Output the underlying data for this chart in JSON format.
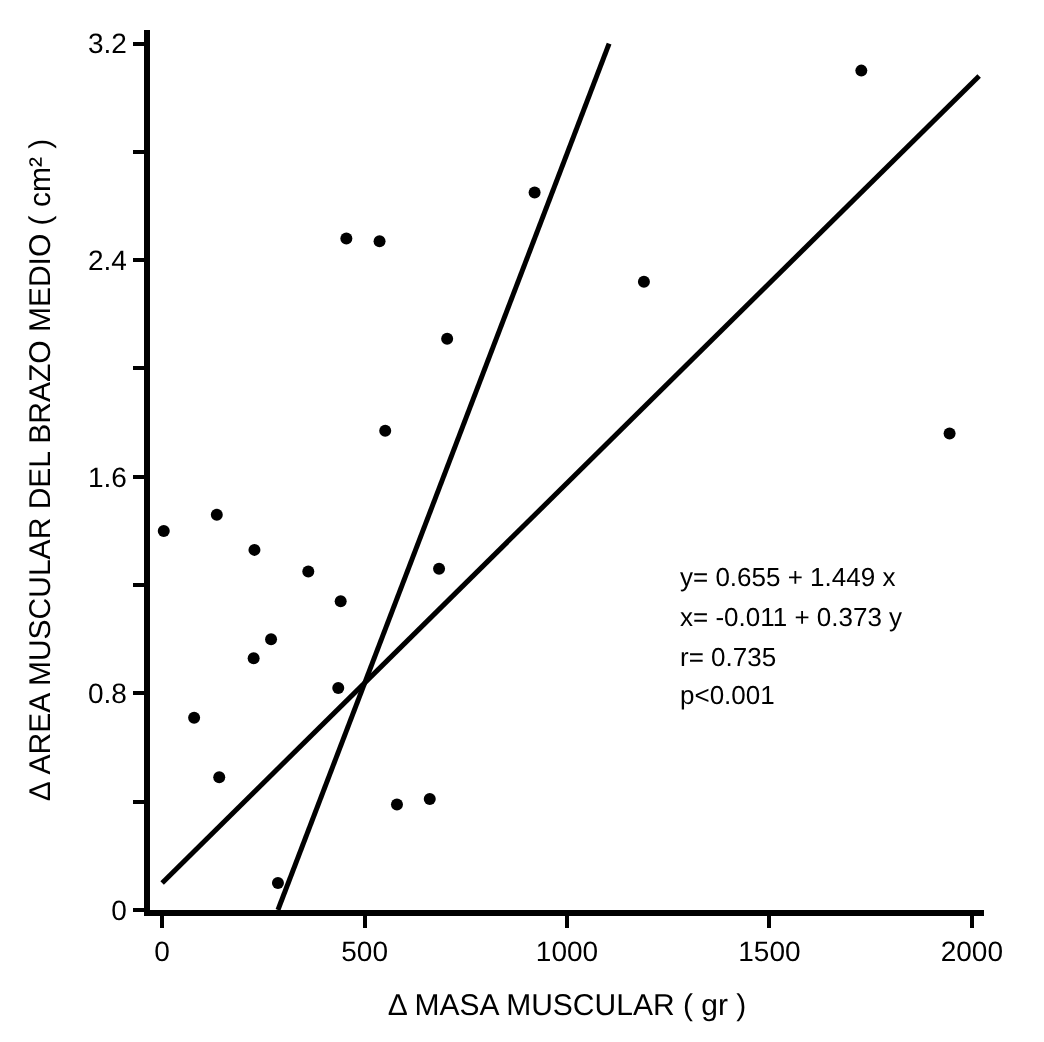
{
  "chart_data": {
    "type": "scatter",
    "xlabel": "Δ MASA MUSCULAR ( gr )",
    "ylabel": "Δ AREA MUSCULAR DEL BRAZO MEDIO ( cm² )",
    "xlim": [
      -30,
      2030
    ],
    "ylim": [
      0,
      3.25
    ],
    "xticks": [
      0,
      500,
      1000,
      1500,
      2000
    ],
    "yticks": [
      0,
      {
        "value": 0.4,
        "label": null
      },
      0.8,
      {
        "value": 1.2,
        "label": null
      },
      1.6,
      {
        "value": 2.0,
        "label": null
      },
      2.4,
      {
        "value": 2.8,
        "label": null
      },
      3.2
    ],
    "legend": false,
    "series": [
      {
        "marker": "circle",
        "color": "#000000",
        "x": [
          455,
          537,
          920,
          1190,
          704,
          551,
          1727,
          1945,
          4,
          135,
          228,
          361,
          684,
          441,
          269,
          226,
          435,
          79,
          141,
          580,
          661,
          286
        ],
        "values": [
          2.48,
          2.47,
          2.65,
          2.32,
          2.11,
          1.77,
          3.1,
          1.76,
          1.4,
          1.46,
          1.33,
          1.25,
          1.26,
          1.14,
          1.0,
          0.93,
          0.82,
          0.71,
          0.49,
          0.39,
          0.41,
          0.1
        ]
      },
      {
        "type": "line",
        "color": "#000000",
        "x": [
          0,
          2018
        ],
        "values": [
          0.1,
          3.08
        ]
      },
      {
        "type": "line",
        "color": "#000000",
        "x": [
          286,
          1104
        ],
        "values": [
          0,
          3.2
        ]
      }
    ],
    "annotations": [
      "y= 0.655 + 1.449 x",
      "x= -0.011 + 0.373 y",
      "r= 0.735",
      "p<0.001"
    ]
  }
}
